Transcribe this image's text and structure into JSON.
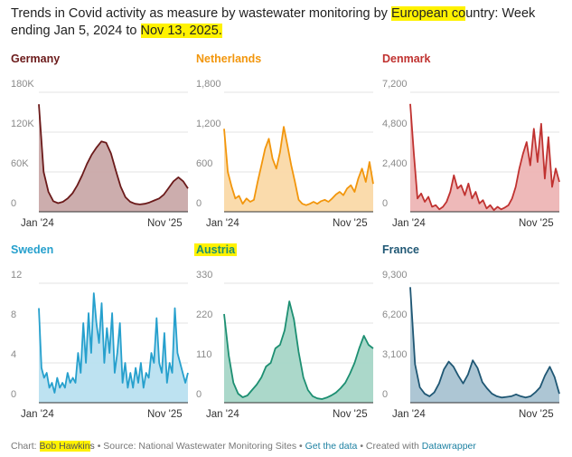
{
  "header": {
    "title_part1": "Trends in Covid activity as measure by wastewater monitoring by ",
    "title_highlight1": "European co",
    "title_part2": "untry: Week ending Jan 5, 2024 to ",
    "title_highlight2": "Nov 13, 2025."
  },
  "footer": {
    "chart_label": "Chart: ",
    "author_highlight": "Bob Hawkin",
    "author_rest": "s",
    "source": " • Source: National Wastewater Monitoring Sites • ",
    "get_data": "Get the data",
    "created": " • Created with ",
    "datawrapper": "Datawrapper"
  },
  "chart_data": [
    {
      "type": "area",
      "name": "Germany",
      "color": "#6b1a1a",
      "fill": "#c9a9a9",
      "ylim": [
        0,
        180000
      ],
      "yticks": [
        0,
        60000,
        120000,
        180000
      ],
      "ytick_labels": [
        "0",
        "60K",
        "120K",
        "180K"
      ],
      "x_labels": [
        "Jan '24",
        "Nov '25"
      ],
      "values": [
        162000,
        60000,
        30000,
        16000,
        13000,
        15000,
        20000,
        28000,
        40000,
        55000,
        72000,
        86000,
        97000,
        106000,
        104000,
        88000,
        62000,
        38000,
        22000,
        15000,
        12000,
        11000,
        12000,
        14000,
        17000,
        20000,
        26000,
        36000,
        46000,
        52000,
        46000,
        35000
      ]
    },
    {
      "type": "area",
      "name": "Netherlands",
      "color": "#f2960c",
      "fill": "#fad9a8",
      "ylim": [
        0,
        1800
      ],
      "yticks": [
        0,
        600,
        1200,
        1800
      ],
      "ytick_labels": [
        "0",
        "600",
        "1,200",
        "1,800"
      ],
      "x_labels": [
        "Jan '24",
        "Nov '25"
      ],
      "values": [
        1250,
        600,
        380,
        200,
        240,
        120,
        200,
        150,
        180,
        450,
        700,
        950,
        1100,
        800,
        650,
        900,
        1280,
        1000,
        700,
        450,
        180,
        120,
        100,
        120,
        150,
        120,
        160,
        180,
        150,
        200,
        260,
        300,
        250,
        350,
        400,
        300,
        500,
        650,
        450,
        750,
        420
      ]
    },
    {
      "type": "area",
      "name": "Denmark",
      "color": "#c03230",
      "fill": "#edb5b5",
      "ylim": [
        0,
        7200
      ],
      "yticks": [
        0,
        2400,
        4800,
        7200
      ],
      "ytick_labels": [
        "0",
        "2,400",
        "4,800",
        "7,200"
      ],
      "x_labels": [
        "Jan '24",
        "Nov '25"
      ],
      "values": [
        6500,
        3500,
        800,
        1100,
        600,
        900,
        300,
        400,
        150,
        300,
        600,
        1200,
        2200,
        1400,
        1600,
        1000,
        1700,
        800,
        1200,
        500,
        700,
        200,
        400,
        100,
        300,
        150,
        250,
        400,
        800,
        1500,
        2600,
        3500,
        4200,
        2800,
        5000,
        3000,
        5300,
        2000,
        4500,
        1500,
        2600,
        1800
      ]
    },
    {
      "type": "area",
      "name": "Sweden",
      "color": "#26a0cd",
      "fill": "#b9e0f0",
      "ylim": [
        0,
        12
      ],
      "yticks": [
        0,
        4,
        8,
        12
      ],
      "ytick_labels": [
        "0",
        "4",
        "8",
        "12"
      ],
      "x_labels": [
        "Jan '24",
        "Nov '25"
      ],
      "values": [
        9.5,
        3.5,
        2.5,
        3,
        1.5,
        2,
        1,
        2.5,
        1.5,
        2,
        1.5,
        3,
        2,
        2.5,
        2,
        5,
        3,
        8,
        4,
        9,
        5,
        11,
        8,
        6,
        10,
        4,
        7.5,
        5,
        9,
        3,
        5,
        8,
        2,
        4,
        1.5,
        3,
        1.5,
        3.5,
        2,
        4,
        1.5,
        3,
        2.5,
        5,
        4,
        8.5,
        4,
        3,
        7,
        2,
        4,
        3,
        9.5,
        5,
        4,
        3,
        2,
        3
      ]
    },
    {
      "type": "area",
      "name": "Austria",
      "color": "#1d8f72",
      "fill": "#a6d6c7",
      "ylim": [
        0,
        330
      ],
      "yticks": [
        0,
        110,
        220,
        330
      ],
      "ytick_labels": [
        "0",
        "110",
        "220",
        "330"
      ],
      "x_labels": [
        "Jan '24",
        "Nov '25"
      ],
      "values": [
        245,
        130,
        55,
        25,
        15,
        20,
        35,
        50,
        70,
        100,
        110,
        150,
        160,
        200,
        280,
        230,
        140,
        70,
        35,
        18,
        12,
        10,
        14,
        20,
        28,
        40,
        55,
        80,
        110,
        150,
        185,
        160,
        150
      ]
    },
    {
      "type": "area",
      "name": "France",
      "color": "#1f5774",
      "fill": "#a9c3d2",
      "ylim": [
        0,
        9300
      ],
      "yticks": [
        0,
        3100,
        6200,
        9300
      ],
      "ytick_labels": [
        "0",
        "3,100",
        "6,200",
        "9,300"
      ],
      "x_labels": [
        "Jan '24",
        "Nov '25"
      ],
      "values": [
        9000,
        3000,
        1200,
        700,
        500,
        800,
        1500,
        2600,
        3200,
        2800,
        2100,
        1500,
        2200,
        3300,
        2700,
        1600,
        1100,
        700,
        500,
        400,
        450,
        500,
        650,
        500,
        400,
        500,
        800,
        1200,
        2100,
        2800,
        2000,
        700
      ]
    }
  ]
}
